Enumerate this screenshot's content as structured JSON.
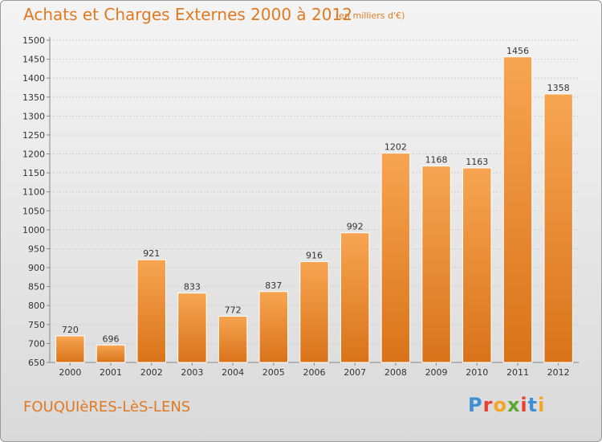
{
  "chart_data": {
    "type": "bar",
    "title": "Achats et Charges Externes 2000 à 2012",
    "subtitle": "(en milliers d'€)",
    "categories": [
      "2000",
      "2001",
      "2002",
      "2003",
      "2004",
      "2005",
      "2006",
      "2007",
      "2008",
      "2009",
      "2010",
      "2011",
      "2012"
    ],
    "values": [
      720,
      696,
      921,
      833,
      772,
      837,
      916,
      992,
      1202,
      1168,
      1163,
      1456,
      1358
    ],
    "ylim": [
      650,
      1500
    ],
    "yticks": [
      650,
      700,
      750,
      800,
      850,
      900,
      950,
      1000,
      1050,
      1100,
      1150,
      1200,
      1250,
      1300,
      1350,
      1400,
      1450,
      1500
    ],
    "grid": true,
    "bar_color": "#f0922e"
  },
  "footer": {
    "commune": "FOUQUIèRES-LèS-LENS",
    "brand_letters": [
      "P",
      "r",
      "o",
      "x",
      "i",
      "t",
      "i"
    ],
    "brand_colors": [
      "#3d8fd6",
      "#e8412f",
      "#f4a623",
      "#5aa832",
      "#e8412f",
      "#3d8fd6",
      "#f4a623"
    ]
  }
}
